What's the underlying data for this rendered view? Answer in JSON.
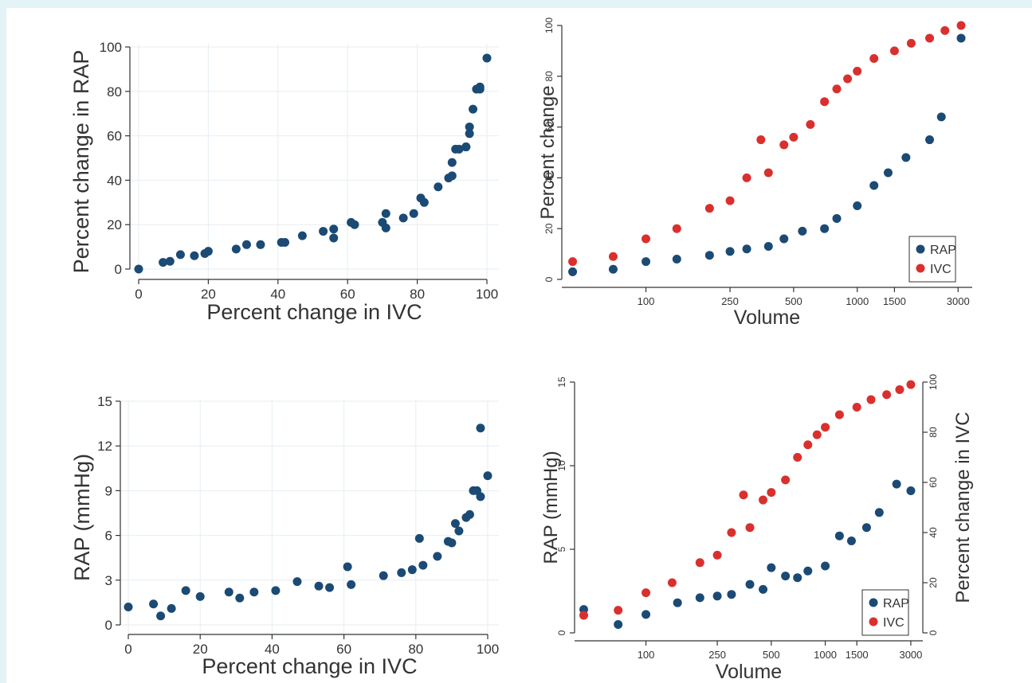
{
  "colors": {
    "rap": "#1b4a75",
    "ivc": "#d9302e"
  },
  "chart_data": [
    {
      "type": "scatter",
      "xlabel": "Percent change in IVC",
      "ylabel": "Percent change in RAP",
      "xlim": [
        0,
        100
      ],
      "ylim": [
        0,
        100
      ],
      "xticks": [
        "0",
        "20",
        "40",
        "60",
        "80",
        "100"
      ],
      "yticks": [
        "0",
        "20",
        "40",
        "60",
        "80",
        "100"
      ],
      "grid": true,
      "x": [
        0,
        7,
        9,
        12,
        16,
        19,
        20,
        28,
        31,
        35,
        41,
        42,
        47,
        53,
        56,
        56,
        61,
        62,
        70,
        71,
        71,
        76,
        79,
        81,
        82,
        86,
        89,
        90,
        90,
        91,
        92,
        94,
        94,
        95,
        95,
        96,
        97,
        98,
        98,
        100
      ],
      "y": [
        0,
        3,
        3.5,
        6.5,
        6,
        7,
        8,
        9,
        11,
        11,
        12,
        12,
        15,
        17,
        14,
        18,
        21,
        20,
        21,
        18.5,
        25,
        23,
        25,
        32,
        30,
        37,
        41,
        42,
        48,
        54,
        54,
        55,
        55,
        61,
        64,
        72,
        81,
        82,
        81,
        95
      ]
    },
    {
      "type": "scatter",
      "xlabel": "Volume",
      "ylabel": "Percent change",
      "xscale": "log",
      "xlim": [
        40,
        3500
      ],
      "ylim": [
        0,
        100
      ],
      "xticks": [
        "100",
        "250",
        "500",
        "1000",
        "1500",
        "3000"
      ],
      "yticks": [
        "0",
        "20",
        "40",
        "60",
        "80",
        "100"
      ],
      "grid": false,
      "legend": "bottom-right",
      "series": [
        {
          "name": "RAP",
          "x": [
            45,
            70,
            100,
            140,
            200,
            250,
            300,
            380,
            450,
            550,
            700,
            800,
            1000,
            1200,
            1400,
            1700,
            2200,
            2500,
            3100
          ],
          "y": [
            3,
            4,
            7,
            8,
            9.5,
            11,
            12,
            13,
            16,
            19,
            20,
            24,
            29,
            37,
            42,
            48,
            55,
            64,
            95
          ]
        },
        {
          "name": "IVC",
          "x": [
            45,
            70,
            100,
            140,
            200,
            250,
            300,
            350,
            380,
            450,
            500,
            600,
            700,
            800,
            900,
            1000,
            1200,
            1500,
            1800,
            2200,
            2600,
            3100
          ],
          "y": [
            7,
            9,
            16,
            20,
            28,
            31,
            40,
            55,
            42,
            53,
            56,
            61,
            70,
            75,
            79,
            82,
            87,
            90,
            93,
            95,
            98,
            100
          ]
        }
      ]
    },
    {
      "type": "scatter",
      "xlabel": "Percent change in IVC",
      "ylabel": "RAP (mmHg)",
      "xlim": [
        0,
        100
      ],
      "ylim": [
        0,
        15
      ],
      "xticks": [
        "0",
        "20",
        "40",
        "60",
        "80",
        "100"
      ],
      "yticks": [
        "0",
        "3",
        "6",
        "9",
        "12",
        "15"
      ],
      "grid": true,
      "x": [
        0,
        7,
        9,
        12,
        16,
        20,
        28,
        31,
        35,
        41,
        47,
        53,
        56,
        61,
        62,
        71,
        76,
        79,
        81,
        82,
        86,
        89,
        90,
        91,
        92,
        94,
        95,
        96,
        97,
        98,
        98,
        100
      ],
      "y": [
        1.2,
        1.4,
        0.6,
        1.1,
        2.3,
        1.9,
        2.2,
        1.8,
        2.2,
        2.3,
        2.9,
        2.6,
        2.5,
        3.9,
        2.7,
        3.3,
        3.5,
        3.7,
        5.8,
        4.0,
        4.6,
        5.6,
        5.5,
        6.8,
        6.3,
        7.2,
        7.4,
        9.0,
        9.0,
        8.6,
        13.2,
        10.0
      ]
    },
    {
      "type": "scatter",
      "xlabel": "Volume",
      "ylabel": "RAP (mmHg)",
      "y2label": "Percent change in IVC",
      "xscale": "log",
      "xlim": [
        40,
        3500
      ],
      "ylim": [
        0,
        15
      ],
      "y2lim": [
        0,
        100
      ],
      "xticks": [
        "100",
        "250",
        "500",
        "1000",
        "1500",
        "3000"
      ],
      "yticks": [
        "0",
        "5",
        "10",
        "15"
      ],
      "y2ticks": [
        "0",
        "20",
        "40",
        "60",
        "80",
        "100"
      ],
      "grid": false,
      "legend": "bottom-right",
      "series": [
        {
          "name": "RAP",
          "x": [
            45,
            70,
            100,
            150,
            200,
            250,
            300,
            380,
            450,
            500,
            600,
            700,
            800,
            1000,
            1200,
            1400,
            1700,
            2000,
            2500,
            3000
          ],
          "y": [
            1.4,
            0.5,
            1.1,
            1.8,
            2.1,
            2.2,
            2.3,
            2.9,
            2.6,
            3.9,
            3.4,
            3.3,
            3.7,
            4.0,
            5.8,
            5.5,
            6.3,
            7.2,
            8.9,
            8.5
          ]
        },
        {
          "name": "IVC",
          "x": [
            45,
            70,
            100,
            140,
            200,
            250,
            300,
            350,
            380,
            450,
            500,
            600,
            700,
            800,
            900,
            1000,
            1200,
            1500,
            1800,
            2200,
            2600,
            3000
          ],
          "y": [
            7,
            9,
            16,
            20,
            28,
            31,
            40,
            55,
            42,
            53,
            56,
            61,
            70,
            75,
            79,
            82,
            87,
            90,
            93,
            95,
            97,
            99
          ]
        }
      ]
    }
  ]
}
